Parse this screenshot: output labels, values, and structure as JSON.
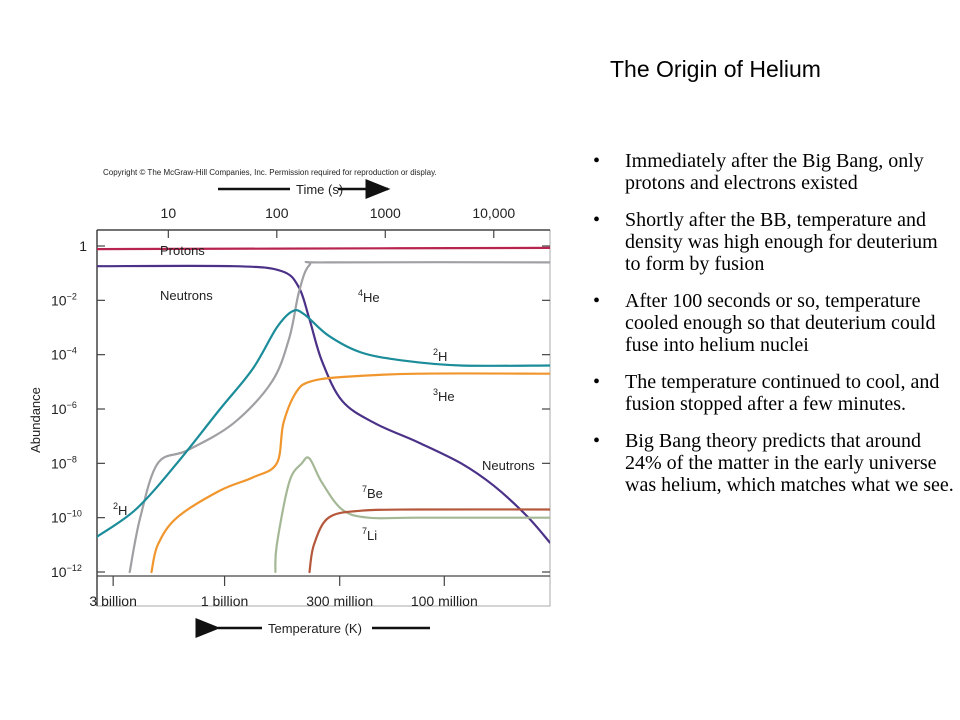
{
  "slide": {
    "title": "The Origin of Helium",
    "bullets": [
      "Immediately after the Big Bang, only protons and electrons existed",
      "Shortly after the BB, temperature and density was high enough for deuterium to form by fusion",
      "After 100 seconds or so, temperature cooled enough so that deuterium could fuse into helium nuclei",
      "The temperature continued to cool, and fusion stopped after a few minutes.",
      "Big Bang theory predicts that around 24% of the matter in the early universe was helium, which matches what we see."
    ]
  },
  "chart_data": {
    "type": "line",
    "copyright": "Copyright © The McGraw-Hill Companies, Inc. Permission required for reproduction or display.",
    "top_axis_label": "Time (s)",
    "top_ticks": [
      "10",
      "100",
      "1000",
      "10,000"
    ],
    "top_tick_values": [
      10,
      100,
      1000,
      10000
    ],
    "ylabel": "Abundance",
    "y_scale": "log",
    "y_range": [
      1e-12,
      10
    ],
    "y_ticks": [
      {
        "base": "1",
        "exp": "",
        "value": 1
      },
      {
        "base": "10",
        "exp": "−2",
        "value": 0.01
      },
      {
        "base": "10",
        "exp": "−4",
        "value": 0.0001
      },
      {
        "base": "10",
        "exp": "−6",
        "value": 1e-06
      },
      {
        "base": "10",
        "exp": "−8",
        "value": 1e-08
      },
      {
        "base": "10",
        "exp": "−10",
        "value": 1e-10
      },
      {
        "base": "10",
        "exp": "−12",
        "value": 1e-12
      }
    ],
    "x_scale": "log",
    "x_range_seconds": [
      2.2,
      33000
    ],
    "xlabel": "Temperature (K)",
    "bottom_ticks": [
      {
        "label": "3 billion",
        "t": 3.1
      },
      {
        "label": "1 billion",
        "t": 33
      },
      {
        "label": "300 million",
        "t": 380
      },
      {
        "label": "100 million",
        "t": 3500
      }
    ],
    "series": [
      {
        "name": "Protons",
        "sup": "",
        "color": "#b82450",
        "points": [
          [
            2.2,
            0.77
          ],
          [
            100,
            0.8
          ],
          [
            33000,
            0.85
          ]
        ]
      },
      {
        "name": "Neutrons",
        "sup": "",
        "color": "#4b3288",
        "points": [
          [
            2.2,
            0.18
          ],
          [
            40,
            0.18
          ],
          [
            110,
            0.12
          ],
          [
            160,
            0.03
          ],
          [
            200,
            0.002
          ],
          [
            260,
            6e-05
          ],
          [
            400,
            2e-06
          ],
          [
            800,
            3e-07
          ],
          [
            2000,
            6e-08
          ],
          [
            5000,
            1e-08
          ],
          [
            10000,
            1.5e-09
          ],
          [
            20000,
            1.2e-10
          ],
          [
            33000,
            1.2e-11
          ]
        ]
      },
      {
        "name": "He",
        "sup": "4",
        "color": "#a0a0a4",
        "points": [
          [
            4.4,
            1e-12
          ],
          [
            5.5,
            1e-10
          ],
          [
            8,
            1e-08
          ],
          [
            15,
            3e-08
          ],
          [
            40,
            3e-07
          ],
          [
            90,
            1e-05
          ],
          [
            130,
            0.0004
          ],
          [
            160,
            0.02
          ],
          [
            200,
            0.2
          ],
          [
            300,
            0.25
          ],
          [
            33000,
            0.25
          ]
        ]
      },
      {
        "name": "H",
        "sup": "2",
        "color": "#1b8c99",
        "points": [
          [
            2.2,
            2e-11
          ],
          [
            5,
            2e-10
          ],
          [
            12,
            1e-08
          ],
          [
            30,
            1e-06
          ],
          [
            60,
            3e-05
          ],
          [
            100,
            0.001
          ],
          [
            140,
            0.004
          ],
          [
            180,
            0.003
          ],
          [
            300,
            0.0005
          ],
          [
            600,
            0.00012
          ],
          [
            1500,
            6e-05
          ],
          [
            5000,
            4e-05
          ],
          [
            33000,
            4e-05
          ]
        ]
      },
      {
        "name": "He",
        "sup": "3",
        "color": "#f0962d",
        "points": [
          [
            7,
            1e-12
          ],
          [
            8,
            1e-11
          ],
          [
            12,
            1e-10
          ],
          [
            30,
            1e-09
          ],
          [
            60,
            3e-09
          ],
          [
            100,
            1e-08
          ],
          [
            115,
            3e-07
          ],
          [
            150,
            4e-06
          ],
          [
            200,
            1e-05
          ],
          [
            400,
            1.5e-05
          ],
          [
            2000,
            2e-05
          ],
          [
            33000,
            2e-05
          ]
        ]
      },
      {
        "name": "Be",
        "sup": "7",
        "color": "#a4b896",
        "points": [
          [
            97,
            1e-12
          ],
          [
            100,
            1e-11
          ],
          [
            130,
            2e-09
          ],
          [
            170,
            1e-08
          ],
          [
            200,
            1.5e-08
          ],
          [
            260,
            2e-09
          ],
          [
            400,
            2e-10
          ],
          [
            700,
            1e-10
          ],
          [
            2000,
            1e-10
          ],
          [
            33000,
            1e-10
          ]
        ]
      },
      {
        "name": "Li",
        "sup": "7",
        "color": "#b5573a",
        "points": [
          [
            200,
            1e-12
          ],
          [
            220,
            1e-11
          ],
          [
            300,
            1e-10
          ],
          [
            600,
            1.8e-10
          ],
          [
            2000,
            2e-10
          ],
          [
            33000,
            2e-10
          ]
        ]
      }
    ],
    "labels": [
      {
        "text": "Protons",
        "sup": ""
      },
      {
        "text": "Neutrons",
        "sup": ""
      },
      {
        "text": "He",
        "sup": "4"
      },
      {
        "text": "H",
        "sup": "2"
      },
      {
        "text": "He",
        "sup": "3"
      },
      {
        "text": "Neutrons",
        "sup": ""
      },
      {
        "text": "Be",
        "sup": "7"
      },
      {
        "text": "Li",
        "sup": "7"
      },
      {
        "text": "H",
        "sup": "2"
      }
    ]
  }
}
